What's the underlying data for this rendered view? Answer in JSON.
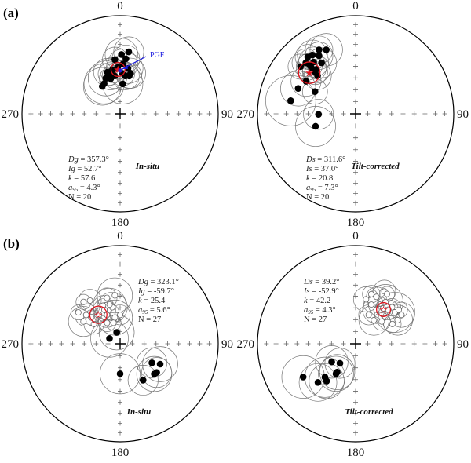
{
  "figure": {
    "panels": [
      {
        "tag": "(a)",
        "mode": "In-situ",
        "pgf_label": "PGF",
        "stats": [
          {
            "sym": "Dg",
            "val": " = 357.3°"
          },
          {
            "sym": "Ig",
            "val": " = 52.7°"
          },
          {
            "sym": "k",
            "val": " = 57.6"
          },
          {
            "sym": "a",
            "sub": "95",
            "val": " = 4.3°"
          },
          {
            "sym": "",
            "val": "N = 20"
          }
        ]
      },
      {
        "tag": "",
        "mode": "Tilt-corrected",
        "stats": [
          {
            "sym": "Ds",
            "val": " = 311.6°"
          },
          {
            "sym": "Is",
            "val": " = 37.0°"
          },
          {
            "sym": "k",
            "val": " = 20.8"
          },
          {
            "sym": "a",
            "sub": "95",
            "val": " = 7.3°"
          },
          {
            "sym": "",
            "val": "N = 20"
          }
        ]
      },
      {
        "tag": "(b)",
        "mode": "In-situ",
        "stats": [
          {
            "sym": "Dg",
            "val": " = 323.1°"
          },
          {
            "sym": "Ig",
            "val": " = -59.7°"
          },
          {
            "sym": "k",
            "val": " = 25.4"
          },
          {
            "sym": "a",
            "sub": "95",
            "val": " = 5.6°"
          },
          {
            "sym": "",
            "val": "N = 27"
          }
        ]
      },
      {
        "tag": "",
        "mode": "Tilt-corrected",
        "stats": [
          {
            "sym": "Ds",
            "val": " = 39.2°"
          },
          {
            "sym": "Is",
            "val": " = -52.9°"
          },
          {
            "sym": "k",
            "val": " = 42.2"
          },
          {
            "sym": "a",
            "sub": "95",
            "val": " = 4.3°"
          },
          {
            "sym": "",
            "val": "N = 27"
          }
        ]
      }
    ],
    "axis_labels": {
      "north": "0",
      "east": "90",
      "south": "180",
      "west": "270"
    }
  },
  "colors": {
    "mean": "#e0141e",
    "pgf": "#1a1adf",
    "points": "#000000",
    "circles": "#777777"
  },
  "chart_data": [
    {
      "type": "scatter",
      "projection": "equal-area stereonet",
      "panel": "(a) In-situ",
      "mean": {
        "dec": 357.3,
        "inc": 52.7,
        "a95": 4.3
      },
      "pgf": {
        "dec": 0,
        "inc": 55
      },
      "points": [
        [
          7.9,
          36.4,
          12
        ],
        [
          1.3,
          39.4,
          13
        ],
        [
          6,
          43,
          11
        ],
        [
          354.5,
          43.8,
          10
        ],
        [
          3,
          48,
          12
        ],
        [
          357,
          51,
          9
        ],
        [
          9.8,
          51.2,
          12
        ],
        [
          350,
          52.6,
          10
        ],
        [
          343,
          53.4,
          11
        ],
        [
          345,
          55.4,
          9
        ],
        [
          3,
          56,
          10
        ],
        [
          14.5,
          54.8,
          12
        ],
        [
          8,
          58,
          11
        ],
        [
          13.6,
          57.4,
          10
        ],
        [
          338,
          58,
          14
        ],
        [
          332,
          61.6,
          16
        ],
        [
          327,
          62.7,
          15
        ],
        [
          5,
          65,
          16
        ],
        [
          352,
          58,
          10
        ],
        [
          345,
          59.6,
          9
        ]
      ]
    },
    {
      "type": "scatter",
      "projection": "equal-area stereonet",
      "panel": "(a) Tilt-corrected",
      "mean": {
        "dec": 311.6,
        "inc": 37.0,
        "a95": 7.3
      },
      "points": [
        [
          330.3,
          25.8,
          11
        ],
        [
          335.4,
          29,
          13
        ],
        [
          323.7,
          26.6,
          12
        ],
        [
          327.8,
          30.8,
          11
        ],
        [
          319.9,
          25.2,
          10
        ],
        [
          321,
          32.6,
          12
        ],
        [
          315.7,
          28.2,
          11
        ],
        [
          310.6,
          27,
          10
        ],
        [
          316.2,
          35,
          12
        ],
        [
          318.6,
          39.4,
          11
        ],
        [
          326.3,
          37.6,
          12
        ],
        [
          315.9,
          40.4,
          10
        ],
        [
          303.3,
          39.4,
          12
        ],
        [
          293.8,
          36.2,
          14
        ],
        [
          298.7,
          51,
          10
        ],
        [
          281.4,
          33,
          20
        ],
        [
          269.2,
          59,
          12
        ],
        [
          252.6,
          54.8,
          16
        ],
        [
          316.6,
          32.6,
          10
        ],
        [
          315,
          44.4,
          11
        ]
      ]
    },
    {
      "type": "scatter",
      "projection": "equal-area stereonet",
      "panel": "(b) In-situ",
      "mean": {
        "dec": 323.1,
        "inc": -59.7,
        "a95": 5.6
      },
      "points": [
        [
          318.8,
          -42.8,
          6
        ],
        [
          325.1,
          -45.4,
          9
        ],
        [
          344,
          -49.8,
          8
        ],
        [
          353.8,
          -49,
          14
        ],
        [
          347.9,
          -58.8,
          12
        ],
        [
          335.8,
          -55,
          8
        ],
        [
          310.2,
          -52.6,
          9
        ],
        [
          312.3,
          -57.4,
          6
        ],
        [
          324,
          -60.2,
          7
        ],
        [
          335.6,
          -63.6,
          10
        ],
        [
          348.7,
          -67.8,
          14
        ],
        [
          301.3,
          -54,
          12
        ],
        [
          306.9,
          -62.7,
          8
        ],
        [
          328,
          -69.6,
          7
        ],
        [
          342.6,
          -71.8,
          6
        ],
        [
          306.9,
          -45.8,
          6
        ],
        [
          335.2,
          -58.8,
          9
        ],
        [
          345,
          -56,
          13
        ],
        [
          0,
          -66,
          8
        ],
        [
          343.2,
          80.2,
          14
        ],
        [
          296.6,
          80.2,
          15
        ],
        [
          180,
          65,
          16
        ],
        [
          121,
          59,
          12
        ],
        [
          117,
          52.2,
          14
        ],
        [
          128.2,
          50.8,
          12
        ],
        [
          131.5,
          51.6,
          14
        ],
        [
          147.8,
          53.8,
          12
        ]
      ]
    },
    {
      "type": "scatter",
      "projection": "equal-area stereonet",
      "panel": "(b) Tilt-corrected",
      "mean": {
        "dec": 39.2,
        "inc": -52.9,
        "a95": 4.3
      },
      "points": [
        [
          13.2,
          -51.6,
          10
        ],
        [
          17.5,
          -46,
          7
        ],
        [
          24,
          -46.6,
          8
        ],
        [
          28.8,
          -39,
          9
        ],
        [
          32.3,
          -39.8,
          6
        ],
        [
          35.7,
          -46.6,
          14
        ],
        [
          21.8,
          -54.6,
          6
        ],
        [
          31.6,
          -56.6,
          11
        ],
        [
          24.4,
          -63.6,
          8
        ],
        [
          37.9,
          -65.2,
          12
        ],
        [
          49.6,
          -61.4,
          7
        ],
        [
          61.8,
          -55,
          7
        ],
        [
          51.3,
          -47.6,
          16
        ],
        [
          51.8,
          -43.4,
          7
        ],
        [
          57.8,
          -44,
          10
        ],
        [
          45,
          -46.4,
          7
        ],
        [
          60.6,
          -49.4,
          12
        ],
        [
          37.9,
          -52.4,
          6
        ],
        [
          43.9,
          -50.2,
          8
        ],
        [
          232.7,
          65,
          13
        ],
        [
          218.7,
          69.2,
          12
        ],
        [
          213,
          61.8,
          14
        ],
        [
          213.1,
          60,
          14
        ],
        [
          222.4,
          51.8,
          16
        ],
        [
          217.8,
          50.2,
          14
        ],
        [
          224.2,
          44.2,
          15
        ],
        [
          237.6,
          36.8,
          17
        ]
      ]
    }
  ]
}
